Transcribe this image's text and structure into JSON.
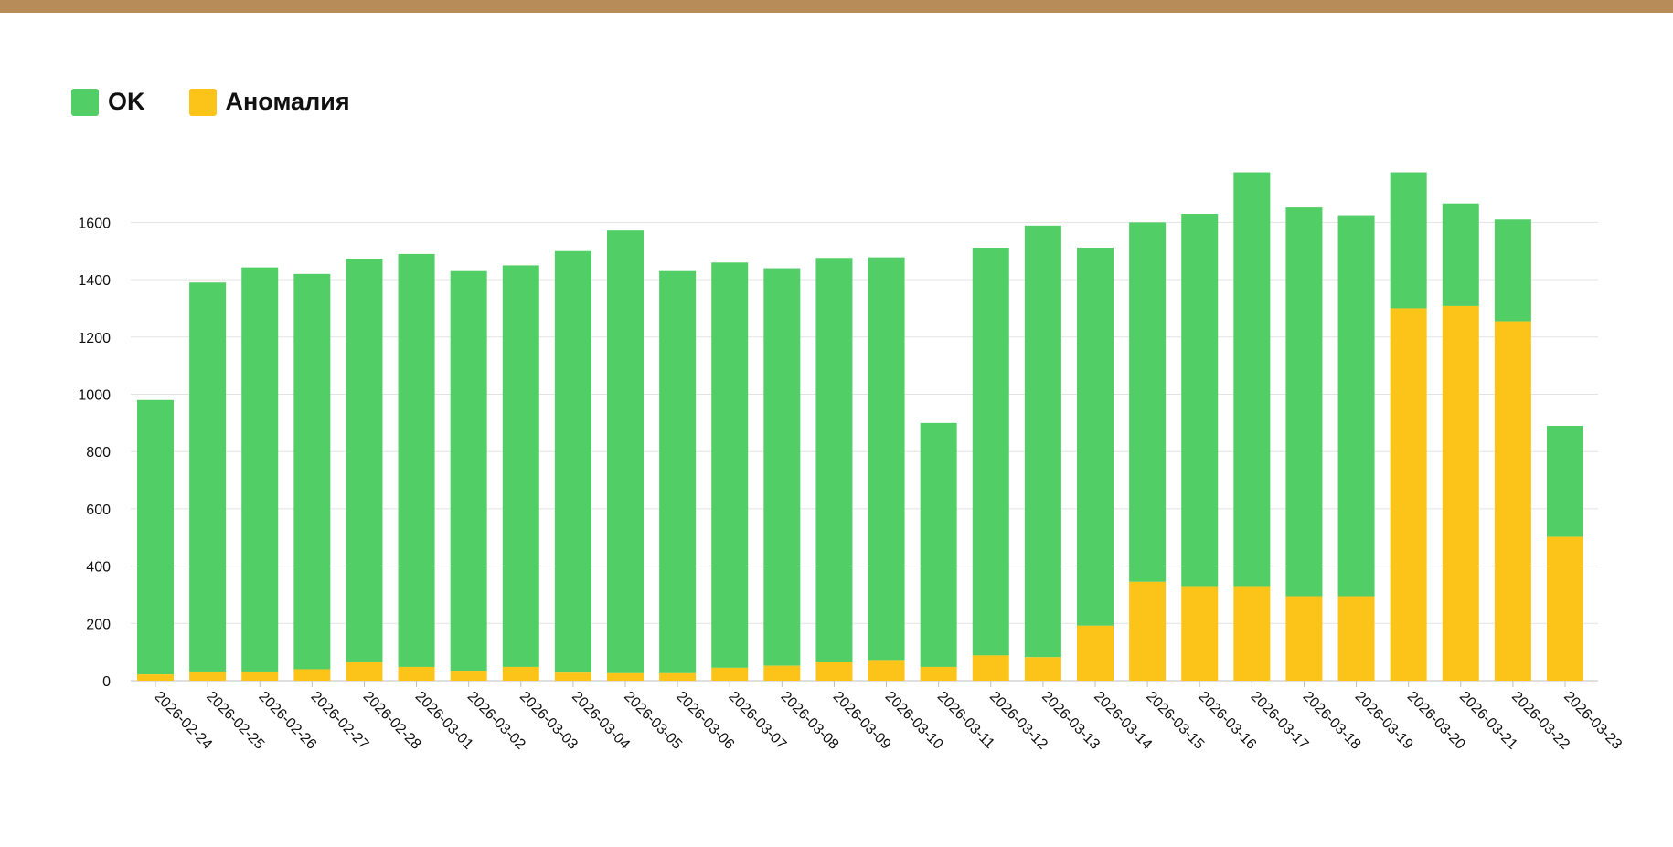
{
  "colors": {
    "ok": "#51cf66",
    "anomaly": "#fcc419",
    "accent": "#b88c58"
  },
  "legend": {
    "ok_label": "OK",
    "anomaly_label": "Аномалия"
  },
  "chart_data": {
    "type": "bar",
    "stacked": true,
    "title": "",
    "xlabel": "",
    "ylabel": "",
    "ylim": [
      0,
      1800
    ],
    "yticks": [
      0,
      200,
      400,
      600,
      800,
      1000,
      1200,
      1400,
      1600
    ],
    "grid": true,
    "legend_position": "top-left",
    "categories": [
      "2026-02-24",
      "2026-02-25",
      "2026-02-26",
      "2026-02-27",
      "2026-02-28",
      "2026-03-01",
      "2026-03-02",
      "2026-03-03",
      "2026-03-04",
      "2026-03-05",
      "2026-03-06",
      "2026-03-07",
      "2026-03-08",
      "2026-03-09",
      "2026-03-10",
      "2026-03-11",
      "2026-03-12",
      "2026-03-13",
      "2026-03-14",
      "2026-03-15",
      "2026-03-16",
      "2026-03-17",
      "2026-03-18",
      "2026-03-19",
      "2026-03-20",
      "2026-03-21",
      "2026-03-22",
      "2026-03-23"
    ],
    "series": [
      {
        "name": "Аномалия",
        "color": "#fcc419",
        "values": [
          22,
          32,
          32,
          40,
          65,
          48,
          35,
          48,
          28,
          26,
          26,
          45,
          52,
          66,
          72,
          48,
          88,
          82,
          192,
          345,
          330,
          330,
          295,
          295,
          1300,
          1308,
          1255,
          502
        ]
      },
      {
        "name": "OK",
        "color": "#51cf66",
        "values": [
          958,
          1358,
          1411,
          1380,
          1408,
          1442,
          1395,
          1402,
          1472,
          1546,
          1404,
          1415,
          1388,
          1410,
          1406,
          852,
          1424,
          1507,
          1320,
          1255,
          1300,
          1445,
          1357,
          1330,
          475,
          358,
          355,
          388
        ]
      }
    ]
  }
}
